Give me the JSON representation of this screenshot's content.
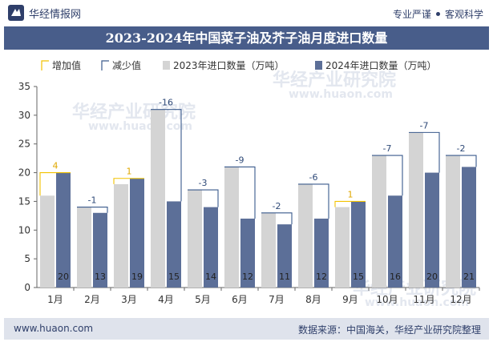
{
  "header": {
    "brand": "华经情报网",
    "slogan_left": "专业严谨",
    "slogan_right": "客观科学"
  },
  "title": "2023-2024年中国菜子油及芥子油月度进口数量",
  "footer": {
    "website": "www.huaon.com",
    "source": "数据来源：中国海关，华经产业研究院整理"
  },
  "watermark": "华经产业研究院",
  "watermark_url": "www.huaon.com",
  "colors": {
    "bar2023": "#d4d4d4",
    "bar2024": "#5c6f98",
    "increase": "#f2c200",
    "decrease": "#3a5a8c",
    "header_bg": "#485d8a",
    "footer_bg": "#dfe3ec"
  },
  "chart_data": {
    "type": "bar",
    "categories": [
      "1月",
      "2月",
      "3月",
      "4月",
      "5月",
      "6月",
      "7月",
      "8月",
      "9月",
      "10月",
      "11月",
      "12月"
    ],
    "series": [
      {
        "name": "2023年进口数量（万吨）",
        "values": [
          16,
          14,
          18,
          31,
          17,
          21,
          13,
          18,
          14,
          23,
          27,
          23
        ]
      },
      {
        "name": "2024年进口数量（万吨）",
        "values": [
          20,
          13,
          19,
          15,
          14,
          12,
          11,
          12,
          15,
          16,
          20,
          21
        ]
      }
    ],
    "differences": [
      4,
      -1,
      1,
      -16,
      -3,
      -9,
      -2,
      -6,
      1,
      -7,
      -7,
      -2
    ],
    "legend": [
      "增加值",
      "减少值",
      "2023年进口数量（万吨）",
      "2024年进口数量（万吨）"
    ],
    "yticks": [
      0,
      5,
      10,
      15,
      20,
      25,
      30,
      35
    ],
    "ylim": [
      0,
      35
    ],
    "grid": false,
    "legend_position": "top"
  }
}
